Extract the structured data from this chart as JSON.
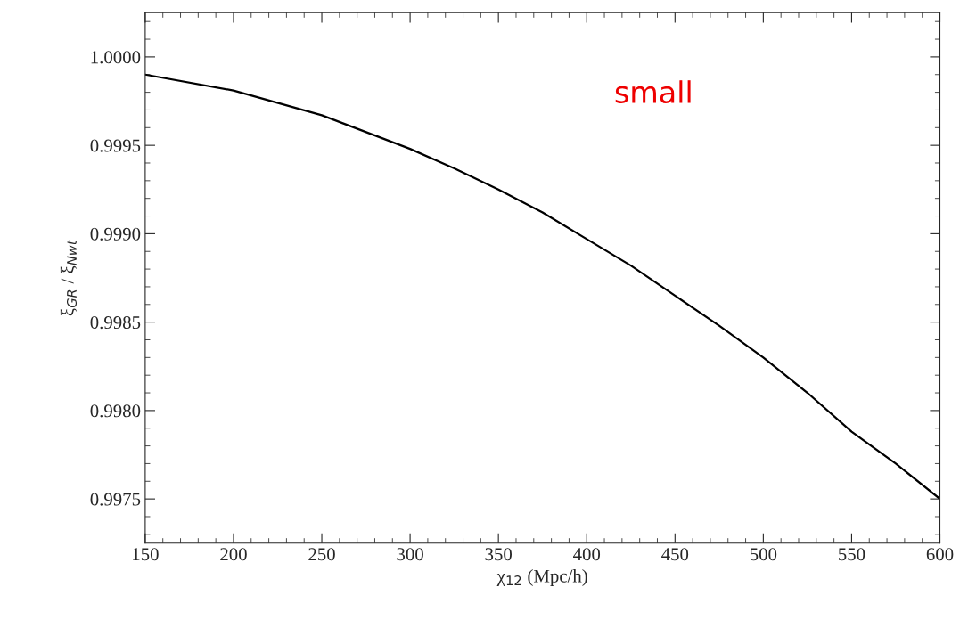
{
  "chart_data": {
    "type": "line",
    "xlabel": "χ$_{12}$ (Mpc/h)",
    "ylabel": "ξ$_{GR}$ / ξ$_{Nwt}$",
    "x": [
      150,
      200,
      250,
      300,
      325,
      350,
      375,
      400,
      425,
      450,
      475,
      500,
      525,
      550,
      575,
      600
    ],
    "series": [
      {
        "color": "#000000",
        "values": [
          0.9999,
          0.99981,
          0.99967,
          0.99948,
          0.99937,
          0.99925,
          0.99912,
          0.99897,
          0.99882,
          0.99865,
          0.99848,
          0.9983,
          0.9981,
          0.99788,
          0.9977,
          0.9975
        ]
      }
    ],
    "xlim": [
      150,
      600
    ],
    "xticks": [
      150,
      200,
      250,
      300,
      350,
      400,
      450,
      500,
      550,
      600
    ],
    "ylim": [
      0.99725,
      1.00025
    ],
    "yticks": [
      {
        "value": 0.9975,
        "label": "0.9975"
      },
      {
        "value": 0.998,
        "label": "0.9980"
      },
      {
        "value": 0.9985,
        "label": "0.9985"
      },
      {
        "value": 0.999,
        "label": "0.9990"
      },
      {
        "value": 0.9995,
        "label": "0.9995"
      },
      {
        "value": 1.0,
        "label": "1.0000"
      }
    ],
    "grid": false,
    "legend": false,
    "marker": "none",
    "line_style": "solid",
    "annotations": [
      "small"
    ]
  }
}
